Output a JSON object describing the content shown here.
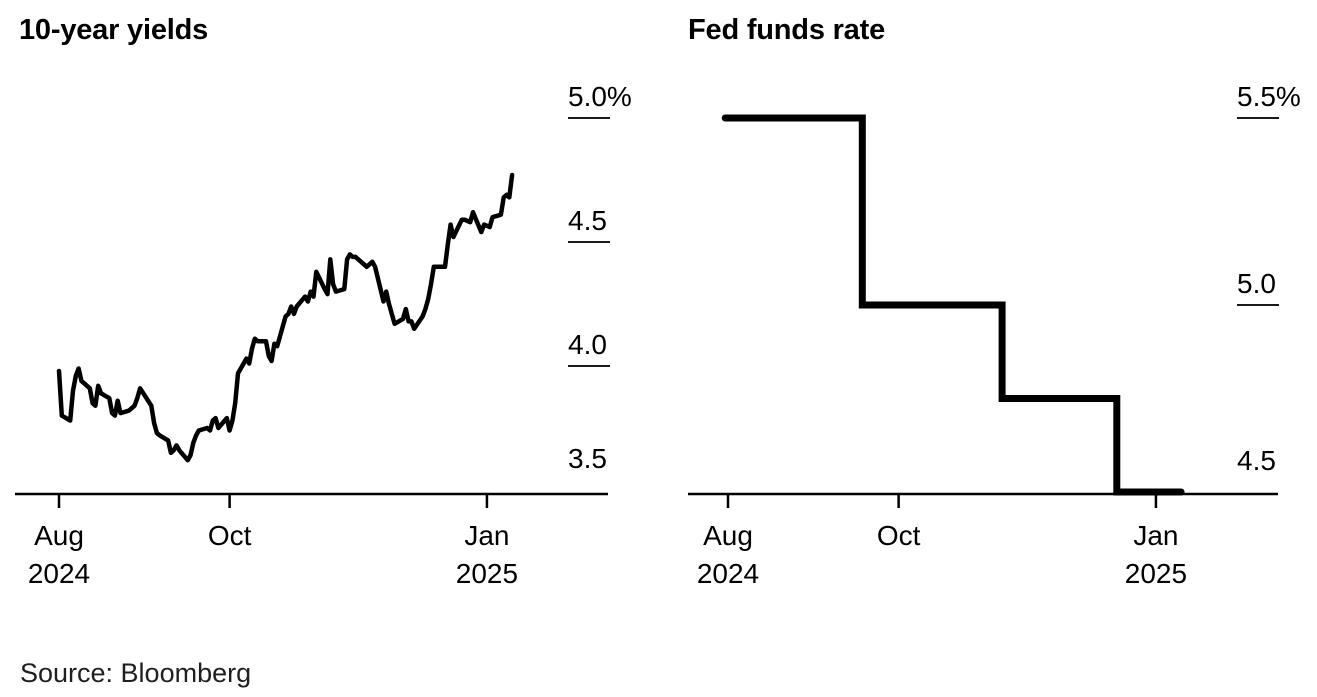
{
  "page": {
    "source": "Source: Bloomberg",
    "background": "#ffffff",
    "text_color": "#000000",
    "line_color": "#000000"
  },
  "chart_data": [
    {
      "type": "line",
      "title": "10-year yields",
      "ylabel": "",
      "xlabel": "",
      "ylim": [
        3.5,
        5.0
      ],
      "x_range": [
        "2024-08-01",
        "2025-01-10"
      ],
      "grid": false,
      "legend": "none",
      "tick_side": "right",
      "line_color": "#000000",
      "line_width": 4.5,
      "y_ticks": [
        {
          "label": "5.0%",
          "value": 5.0
        },
        {
          "label": "4.5",
          "value": 4.5
        },
        {
          "label": "4.0",
          "value": 4.0
        },
        {
          "label": "3.5",
          "value": 3.5
        }
      ],
      "x_ticks": [
        {
          "month": "Aug",
          "year": "2024",
          "date": "2024-08-01"
        },
        {
          "month": "Oct",
          "year": "",
          "date": "2024-10-01"
        },
        {
          "month": "Jan",
          "year": "2025",
          "date": "2025-01-01"
        }
      ],
      "series": [
        {
          "name": "10-year yields",
          "step": false,
          "points": [
            [
              "2024-08-01",
              3.98
            ],
            [
              "2024-08-02",
              3.8
            ],
            [
              "2024-08-05",
              3.78
            ],
            [
              "2024-08-06",
              3.9
            ],
            [
              "2024-08-07",
              3.96
            ],
            [
              "2024-08-08",
              3.99
            ],
            [
              "2024-08-09",
              3.94
            ],
            [
              "2024-08-12",
              3.91
            ],
            [
              "2024-08-13",
              3.85
            ],
            [
              "2024-08-14",
              3.84
            ],
            [
              "2024-08-15",
              3.92
            ],
            [
              "2024-08-16",
              3.89
            ],
            [
              "2024-08-19",
              3.87
            ],
            [
              "2024-08-20",
              3.81
            ],
            [
              "2024-08-21",
              3.8
            ],
            [
              "2024-08-22",
              3.86
            ],
            [
              "2024-08-23",
              3.81
            ],
            [
              "2024-08-26",
              3.82
            ],
            [
              "2024-08-27",
              3.83
            ],
            [
              "2024-08-28",
              3.84
            ],
            [
              "2024-08-29",
              3.87
            ],
            [
              "2024-08-30",
              3.91
            ],
            [
              "2024-09-03",
              3.84
            ],
            [
              "2024-09-04",
              3.77
            ],
            [
              "2024-09-05",
              3.73
            ],
            [
              "2024-09-06",
              3.72
            ],
            [
              "2024-09-09",
              3.7
            ],
            [
              "2024-09-10",
              3.65
            ],
            [
              "2024-09-11",
              3.66
            ],
            [
              "2024-09-12",
              3.68
            ],
            [
              "2024-09-13",
              3.66
            ],
            [
              "2024-09-16",
              3.62
            ],
            [
              "2024-09-17",
              3.64
            ],
            [
              "2024-09-18",
              3.69
            ],
            [
              "2024-09-19",
              3.72
            ],
            [
              "2024-09-20",
              3.74
            ],
            [
              "2024-09-23",
              3.75
            ],
            [
              "2024-09-24",
              3.74
            ],
            [
              "2024-09-25",
              3.78
            ],
            [
              "2024-09-26",
              3.79
            ],
            [
              "2024-09-27",
              3.75
            ],
            [
              "2024-09-30",
              3.79
            ],
            [
              "2024-10-01",
              3.74
            ],
            [
              "2024-10-02",
              3.78
            ],
            [
              "2024-10-03",
              3.85
            ],
            [
              "2024-10-04",
              3.97
            ],
            [
              "2024-10-07",
              4.03
            ],
            [
              "2024-10-08",
              4.01
            ],
            [
              "2024-10-09",
              4.07
            ],
            [
              "2024-10-10",
              4.11
            ],
            [
              "2024-10-11",
              4.1
            ],
            [
              "2024-10-14",
              4.1
            ],
            [
              "2024-10-15",
              4.04
            ],
            [
              "2024-10-16",
              4.02
            ],
            [
              "2024-10-17",
              4.09
            ],
            [
              "2024-10-18",
              4.08
            ],
            [
              "2024-10-21",
              4.2
            ],
            [
              "2024-10-22",
              4.21
            ],
            [
              "2024-10-23",
              4.24
            ],
            [
              "2024-10-24",
              4.21
            ],
            [
              "2024-10-25",
              4.24
            ],
            [
              "2024-10-28",
              4.28
            ],
            [
              "2024-10-29",
              4.26
            ],
            [
              "2024-10-30",
              4.3
            ],
            [
              "2024-10-31",
              4.28
            ],
            [
              "2024-11-01",
              4.38
            ],
            [
              "2024-11-04",
              4.31
            ],
            [
              "2024-11-05",
              4.29
            ],
            [
              "2024-11-06",
              4.43
            ],
            [
              "2024-11-07",
              4.33
            ],
            [
              "2024-11-08",
              4.3
            ],
            [
              "2024-11-11",
              4.31
            ],
            [
              "2024-11-12",
              4.43
            ],
            [
              "2024-11-13",
              4.45
            ],
            [
              "2024-11-14",
              4.44
            ],
            [
              "2024-11-15",
              4.44
            ],
            [
              "2024-11-18",
              4.41
            ],
            [
              "2024-11-19",
              4.4
            ],
            [
              "2024-11-20",
              4.41
            ],
            [
              "2024-11-21",
              4.42
            ],
            [
              "2024-11-22",
              4.4
            ],
            [
              "2024-11-25",
              4.26
            ],
            [
              "2024-11-26",
              4.3
            ],
            [
              "2024-11-27",
              4.25
            ],
            [
              "2024-11-29",
              4.17
            ],
            [
              "2024-12-02",
              4.19
            ],
            [
              "2024-12-03",
              4.23
            ],
            [
              "2024-12-04",
              4.18
            ],
            [
              "2024-12-05",
              4.18
            ],
            [
              "2024-12-06",
              4.15
            ],
            [
              "2024-12-09",
              4.2
            ],
            [
              "2024-12-10",
              4.23
            ],
            [
              "2024-12-11",
              4.27
            ],
            [
              "2024-12-12",
              4.33
            ],
            [
              "2024-12-13",
              4.4
            ],
            [
              "2024-12-16",
              4.4
            ],
            [
              "2024-12-17",
              4.4
            ],
            [
              "2024-12-18",
              4.49
            ],
            [
              "2024-12-19",
              4.57
            ],
            [
              "2024-12-20",
              4.52
            ],
            [
              "2024-12-23",
              4.59
            ],
            [
              "2024-12-24",
              4.59
            ],
            [
              "2024-12-26",
              4.58
            ],
            [
              "2024-12-27",
              4.62
            ],
            [
              "2024-12-30",
              4.54
            ],
            [
              "2024-12-31",
              4.57
            ],
            [
              "2025-01-02",
              4.56
            ],
            [
              "2025-01-03",
              4.6
            ],
            [
              "2025-01-06",
              4.61
            ],
            [
              "2025-01-07",
              4.68
            ],
            [
              "2025-01-08",
              4.69
            ],
            [
              "2025-01-09",
              4.68
            ],
            [
              "2025-01-10",
              4.77
            ]
          ]
        }
      ]
    },
    {
      "type": "line",
      "subtype": "step",
      "title": "Fed funds rate",
      "ylabel": "",
      "xlabel": "",
      "ylim": [
        4.5,
        5.5
      ],
      "x_range": [
        "2024-07-31",
        "2025-01-10"
      ],
      "grid": false,
      "legend": "none",
      "tick_side": "right",
      "line_color": "#000000",
      "line_width": 7,
      "y_ticks": [
        {
          "label": "5.5%",
          "value": 5.5
        },
        {
          "label": "5.0",
          "value": 5.0
        },
        {
          "label": "4.5",
          "value": 4.5
        }
      ],
      "x_ticks": [
        {
          "month": "Aug",
          "year": "2024",
          "date": "2024-08-01"
        },
        {
          "month": "Oct",
          "year": "",
          "date": "2024-10-01"
        },
        {
          "month": "Jan",
          "year": "2025",
          "date": "2025-01-01"
        }
      ],
      "series": [
        {
          "name": "Fed funds rate",
          "step": true,
          "points": [
            [
              "2024-07-31",
              5.5
            ],
            [
              "2024-09-18",
              5.5
            ],
            [
              "2024-09-18",
              5.0
            ],
            [
              "2024-11-07",
              5.0
            ],
            [
              "2024-11-07",
              4.75
            ],
            [
              "2024-12-18",
              4.75
            ],
            [
              "2024-12-18",
              4.5
            ],
            [
              "2025-01-10",
              4.5
            ]
          ]
        }
      ]
    }
  ]
}
